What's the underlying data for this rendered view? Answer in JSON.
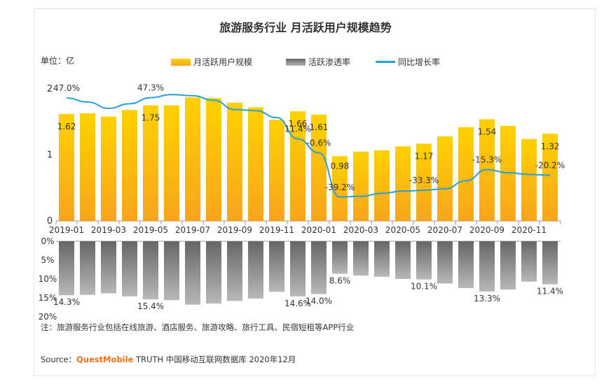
{
  "title": "旅游服务行业 月活跃用户规模趋势",
  "unit_label": "单位：亿",
  "legend": [
    {
      "name": "月活跃用户规模",
      "color": "#f9b400",
      "kind": "bar"
    },
    {
      "name": "活跃渗透率",
      "color": "#8a8a8a",
      "kind": "bar"
    },
    {
      "name": "同比增长率",
      "color": "#2aa0d8",
      "kind": "line"
    }
  ],
  "note": "注：旅游服务行业包括在线旅游、酒店服务、旅游攻略、旅行工具、民宿短租等APP行业",
  "source": {
    "prefix": "Source：",
    "brand": "QuestMobile",
    "suffix": " TRUTH 中国移动互联网数据库 2020年12月"
  },
  "chart_data": {
    "type": "bar",
    "title": "旅游服务行业 月活跃用户规模趋势",
    "categories": [
      "2019-01",
      "2019-02",
      "2019-03",
      "2019-04",
      "2019-05",
      "2019-06",
      "2019-07",
      "2019-08",
      "2019-09",
      "2019-10",
      "2019-11",
      "2019-12",
      "2020-01",
      "2020-02",
      "2020-03",
      "2020-04",
      "2020-05",
      "2020-06",
      "2020-07",
      "2020-08",
      "2020-09",
      "2020-10",
      "2020-11",
      "2020-12"
    ],
    "x_tick_labels": [
      "2019-01",
      "2019-03",
      "2019-05",
      "2019-07",
      "2019-09",
      "2019-11",
      "2020-01",
      "2020-03",
      "2020-05",
      "2020-07",
      "2020-09",
      "2020-11"
    ],
    "series": [
      {
        "name": "月活跃用户规模",
        "unit": "亿",
        "ylim": [
          0,
          2
        ],
        "yticks": [
          "0",
          "1",
          "2"
        ],
        "values": [
          1.62,
          1.63,
          1.58,
          1.68,
          1.75,
          1.75,
          1.87,
          1.86,
          1.79,
          1.72,
          1.53,
          1.66,
          1.61,
          0.98,
          1.05,
          1.07,
          1.13,
          1.17,
          1.28,
          1.42,
          1.54,
          1.44,
          1.24,
          1.32
        ],
        "labels": {
          "0": "1.62",
          "4": "1.75",
          "11": "1.66",
          "12": "1.61",
          "13": "0.98",
          "17": "1.17",
          "20": "1.54",
          "23": "1.32"
        }
      },
      {
        "name": "同比增长率",
        "unit": "%",
        "values": [
          47.0,
          43.5,
          38.0,
          42.0,
          47.3,
          50.0,
          49.0,
          45.0,
          37.0,
          36.0,
          30.0,
          11.4,
          -0.6,
          -39.2,
          -38.5,
          -36.0,
          -34.0,
          -33.3,
          -32.0,
          -25.0,
          -15.3,
          -18.0,
          -19.5,
          -20.2
        ],
        "labels": {
          "0": "47.0%",
          "4": "47.3%",
          "11": "11.4%",
          "12": "-0.6%",
          "13": "-39.2%",
          "17": "-33.3%",
          "20": "-15.3%",
          "23": "-20.2%"
        }
      },
      {
        "name": "活跃渗透率",
        "unit": "%",
        "ylim": [
          0,
          20
        ],
        "yticks": [
          "0%",
          "5%",
          "10%",
          "15%",
          "20%"
        ],
        "values": [
          14.3,
          14.2,
          13.8,
          14.6,
          15.4,
          15.6,
          16.8,
          16.5,
          15.8,
          15.2,
          13.4,
          14.6,
          14.0,
          8.6,
          9.1,
          9.4,
          10.0,
          10.1,
          11.2,
          12.4,
          13.3,
          12.8,
          10.7,
          11.4
        ],
        "labels": {
          "0": "14.3%",
          "4": "15.4%",
          "11": "14.6%",
          "12": "14.0%",
          "13": "8.6%",
          "17": "10.1%",
          "20": "13.3%",
          "23": "11.4%"
        }
      }
    ],
    "legend_position": "top",
    "grid": false
  }
}
